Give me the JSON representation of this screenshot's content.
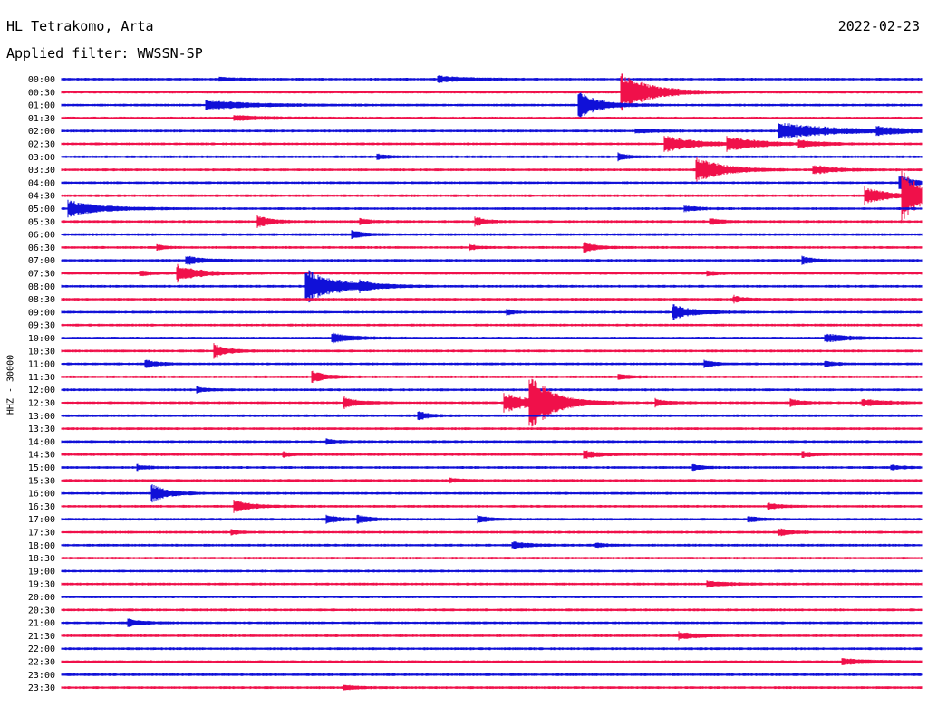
{
  "header": {
    "station": "HL Tetrakomo, Arta",
    "date": "2022-02-23",
    "filter": "Applied filter: WWSSN-SP"
  },
  "y_axis_label": "HHZ - 30000",
  "colors": {
    "even_trace": "#1010d8",
    "odd_trace": "#f0104a"
  },
  "chart_data": {
    "type": "line",
    "title": "HL Tetrakomo, Arta",
    "subtitle": "Applied filter: WWSSN-SP",
    "ylabel": "HHZ - 30000",
    "row_minutes": 30,
    "xlim_minutes": [
      0,
      30
    ],
    "grid": false,
    "rows": [
      "00:00",
      "00:30",
      "01:00",
      "01:30",
      "02:00",
      "02:30",
      "03:00",
      "03:30",
      "04:00",
      "04:30",
      "05:00",
      "05:30",
      "06:00",
      "06:30",
      "07:00",
      "07:30",
      "08:00",
      "08:30",
      "09:00",
      "09:30",
      "10:00",
      "10:30",
      "11:00",
      "11:30",
      "12:00",
      "12:30",
      "13:00",
      "13:30",
      "14:00",
      "14:30",
      "15:00",
      "15:30",
      "16:00",
      "16:30",
      "17:00",
      "17:30",
      "18:00",
      "18:30",
      "19:00",
      "19:30",
      "20:00",
      "20:30",
      "21:00",
      "21:30",
      "22:00",
      "22:30",
      "23:00",
      "23:30"
    ],
    "events": [
      {
        "row": 0,
        "minute": 13.1,
        "amp": 0.35,
        "dur": 1.2
      },
      {
        "row": 0,
        "minute": 5.5,
        "amp": 0.2,
        "dur": 0.6
      },
      {
        "row": 1,
        "minute": 19.5,
        "amp": 2.1,
        "dur": 1.4
      },
      {
        "row": 2,
        "minute": 18.0,
        "amp": 1.5,
        "dur": 1.0
      },
      {
        "row": 2,
        "minute": 5.0,
        "amp": 0.5,
        "dur": 2.0
      },
      {
        "row": 3,
        "minute": 6.0,
        "amp": 0.25,
        "dur": 1.5
      },
      {
        "row": 4,
        "minute": 25.0,
        "amp": 0.9,
        "dur": 2.5
      },
      {
        "row": 4,
        "minute": 28.4,
        "amp": 0.4,
        "dur": 1.2
      },
      {
        "row": 4,
        "minute": 20.0,
        "amp": 0.2,
        "dur": 1.0
      },
      {
        "row": 5,
        "minute": 21.0,
        "amp": 0.9,
        "dur": 1.5
      },
      {
        "row": 5,
        "minute": 23.2,
        "amp": 0.7,
        "dur": 1.5
      },
      {
        "row": 5,
        "minute": 25.7,
        "amp": 0.35,
        "dur": 1.0
      },
      {
        "row": 6,
        "minute": 19.4,
        "amp": 0.4,
        "dur": 0.5
      },
      {
        "row": 6,
        "minute": 11.0,
        "amp": 0.25,
        "dur": 0.6
      },
      {
        "row": 7,
        "minute": 22.1,
        "amp": 1.5,
        "dur": 1.2
      },
      {
        "row": 7,
        "minute": 26.2,
        "amp": 0.5,
        "dur": 1.0
      },
      {
        "row": 8,
        "minute": 29.2,
        "amp": 0.9,
        "dur": 0.6
      },
      {
        "row": 9,
        "minute": 29.3,
        "amp": 2.7,
        "dur": 1.1
      },
      {
        "row": 9,
        "minute": 28.0,
        "amp": 1.0,
        "dur": 1.0
      },
      {
        "row": 10,
        "minute": 0.2,
        "amp": 0.9,
        "dur": 1.5
      },
      {
        "row": 10,
        "minute": 21.7,
        "amp": 0.3,
        "dur": 0.6
      },
      {
        "row": 11,
        "minute": 6.8,
        "amp": 0.7,
        "dur": 0.6
      },
      {
        "row": 11,
        "minute": 14.4,
        "amp": 0.5,
        "dur": 0.5
      },
      {
        "row": 11,
        "minute": 10.4,
        "amp": 0.3,
        "dur": 0.5
      },
      {
        "row": 11,
        "minute": 22.6,
        "amp": 0.35,
        "dur": 0.5
      },
      {
        "row": 12,
        "minute": 10.1,
        "amp": 0.5,
        "dur": 0.5
      },
      {
        "row": 13,
        "minute": 18.2,
        "amp": 0.6,
        "dur": 0.6
      },
      {
        "row": 13,
        "minute": 3.3,
        "amp": 0.3,
        "dur": 0.4
      },
      {
        "row": 13,
        "minute": 14.2,
        "amp": 0.3,
        "dur": 0.4
      },
      {
        "row": 14,
        "minute": 4.3,
        "amp": 0.5,
        "dur": 0.8
      },
      {
        "row": 14,
        "minute": 25.8,
        "amp": 0.5,
        "dur": 0.5
      },
      {
        "row": 15,
        "minute": 4.0,
        "amp": 1.0,
        "dur": 1.0
      },
      {
        "row": 15,
        "minute": 2.7,
        "amp": 0.3,
        "dur": 0.5
      },
      {
        "row": 15,
        "minute": 22.5,
        "amp": 0.3,
        "dur": 0.4
      },
      {
        "row": 16,
        "minute": 8.5,
        "amp": 1.9,
        "dur": 1.5
      },
      {
        "row": 16,
        "minute": 10.4,
        "amp": 0.4,
        "dur": 0.6
      },
      {
        "row": 17,
        "minute": 23.4,
        "amp": 0.4,
        "dur": 0.5
      },
      {
        "row": 18,
        "minute": 21.3,
        "amp": 0.8,
        "dur": 1.0
      },
      {
        "row": 18,
        "minute": 15.5,
        "amp": 0.3,
        "dur": 0.4
      },
      {
        "row": 20,
        "minute": 9.4,
        "amp": 0.5,
        "dur": 1.0
      },
      {
        "row": 20,
        "minute": 26.6,
        "amp": 0.5,
        "dur": 1.0
      },
      {
        "row": 21,
        "minute": 5.3,
        "amp": 0.8,
        "dur": 0.6
      },
      {
        "row": 22,
        "minute": 2.9,
        "amp": 0.4,
        "dur": 0.6
      },
      {
        "row": 22,
        "minute": 22.4,
        "amp": 0.4,
        "dur": 0.5
      },
      {
        "row": 22,
        "minute": 26.6,
        "amp": 0.3,
        "dur": 0.5
      },
      {
        "row": 23,
        "minute": 8.7,
        "amp": 0.7,
        "dur": 0.6
      },
      {
        "row": 23,
        "minute": 19.4,
        "amp": 0.3,
        "dur": 0.6
      },
      {
        "row": 24,
        "minute": 4.7,
        "amp": 0.3,
        "dur": 0.5
      },
      {
        "row": 25,
        "minute": 15.4,
        "amp": 1.0,
        "dur": 1.5
      },
      {
        "row": 25,
        "minute": 16.3,
        "amp": 3.3,
        "dur": 1.0
      },
      {
        "row": 25,
        "minute": 9.8,
        "amp": 0.7,
        "dur": 0.6
      },
      {
        "row": 25,
        "minute": 20.7,
        "amp": 0.4,
        "dur": 0.5
      },
      {
        "row": 25,
        "minute": 25.4,
        "amp": 0.4,
        "dur": 0.5
      },
      {
        "row": 25,
        "minute": 27.9,
        "amp": 0.4,
        "dur": 1.0
      },
      {
        "row": 26,
        "minute": 12.4,
        "amp": 0.5,
        "dur": 0.5
      },
      {
        "row": 28,
        "minute": 9.2,
        "amp": 0.3,
        "dur": 0.4
      },
      {
        "row": 29,
        "minute": 18.2,
        "amp": 0.5,
        "dur": 0.6
      },
      {
        "row": 29,
        "minute": 7.7,
        "amp": 0.3,
        "dur": 0.4
      },
      {
        "row": 29,
        "minute": 25.8,
        "amp": 0.35,
        "dur": 0.5
      },
      {
        "row": 30,
        "minute": 2.6,
        "amp": 0.3,
        "dur": 0.5
      },
      {
        "row": 30,
        "minute": 22.0,
        "amp": 0.3,
        "dur": 0.5
      },
      {
        "row": 30,
        "minute": 28.9,
        "amp": 0.3,
        "dur": 0.5
      },
      {
        "row": 31,
        "minute": 13.5,
        "amp": 0.25,
        "dur": 0.5
      },
      {
        "row": 32,
        "minute": 3.1,
        "amp": 1.0,
        "dur": 0.8
      },
      {
        "row": 33,
        "minute": 6.0,
        "amp": 0.7,
        "dur": 0.8
      },
      {
        "row": 33,
        "minute": 24.6,
        "amp": 0.35,
        "dur": 0.6
      },
      {
        "row": 34,
        "minute": 9.2,
        "amp": 0.5,
        "dur": 0.6
      },
      {
        "row": 34,
        "minute": 10.3,
        "amp": 0.4,
        "dur": 0.6
      },
      {
        "row": 34,
        "minute": 14.5,
        "amp": 0.4,
        "dur": 0.5
      },
      {
        "row": 34,
        "minute": 23.9,
        "amp": 0.4,
        "dur": 0.5
      },
      {
        "row": 35,
        "minute": 25.0,
        "amp": 0.4,
        "dur": 0.6
      },
      {
        "row": 35,
        "minute": 5.9,
        "amp": 0.3,
        "dur": 0.4
      },
      {
        "row": 36,
        "minute": 15.7,
        "amp": 0.4,
        "dur": 0.8
      },
      {
        "row": 36,
        "minute": 18.6,
        "amp": 0.25,
        "dur": 0.5
      },
      {
        "row": 39,
        "minute": 22.5,
        "amp": 0.3,
        "dur": 1.0
      },
      {
        "row": 42,
        "minute": 2.3,
        "amp": 0.4,
        "dur": 0.6
      },
      {
        "row": 43,
        "minute": 21.5,
        "amp": 0.4,
        "dur": 0.8
      },
      {
        "row": 45,
        "minute": 27.2,
        "amp": 0.3,
        "dur": 1.4
      },
      {
        "row": 47,
        "minute": 9.8,
        "amp": 0.3,
        "dur": 0.6
      }
    ]
  }
}
